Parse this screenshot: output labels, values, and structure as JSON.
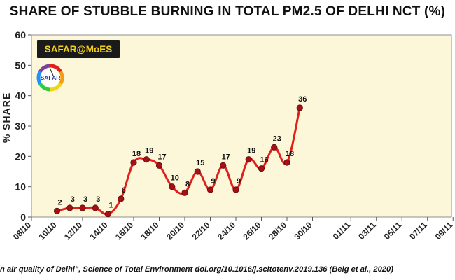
{
  "chart_data": {
    "type": "line",
    "title": "SHARE OF STUBBLE BURNING IN TOTAL PM2.5 OF DELHI NCT (%)",
    "xlabel": "",
    "ylabel": "% SHARE",
    "ylim": [
      0,
      60
    ],
    "yticks": [
      0,
      10,
      20,
      30,
      40,
      50,
      60
    ],
    "xticks": [
      "08/10",
      "10/10",
      "12/10",
      "14/10",
      "16/10",
      "18/10",
      "20/10",
      "22/10",
      "24/10",
      "26/10",
      "28/10",
      "30/10",
      "01/11",
      "03/11",
      "05/11",
      "07/11",
      "09/11"
    ],
    "grid": false,
    "series": [
      {
        "color": "#e0201b",
        "marker_color": "#a50f15",
        "points": [
          {
            "x": "10/10",
            "y": 2
          },
          {
            "x": "11/10",
            "y": 3
          },
          {
            "x": "12/10",
            "y": 3
          },
          {
            "x": "13/10",
            "y": 3
          },
          {
            "x": "14/10",
            "y": 1
          },
          {
            "x": "15/10",
            "y": 6
          },
          {
            "x": "16/10",
            "y": 18
          },
          {
            "x": "17/10",
            "y": 19
          },
          {
            "x": "18/10",
            "y": 17
          },
          {
            "x": "19/10",
            "y": 10
          },
          {
            "x": "20/10",
            "y": 8
          },
          {
            "x": "21/10",
            "y": 15
          },
          {
            "x": "22/10",
            "y": 9
          },
          {
            "x": "23/10",
            "y": 17
          },
          {
            "x": "24/10",
            "y": 9
          },
          {
            "x": "25/10",
            "y": 19
          },
          {
            "x": "26/10",
            "y": 16
          },
          {
            "x": "27/10",
            "y": 23
          },
          {
            "x": "28/10",
            "y": 18
          },
          {
            "x": "29/10",
            "y": 36
          }
        ]
      }
    ],
    "data_labels": [
      "2",
      "3",
      "3",
      "3",
      "1",
      "6",
      "18",
      "19",
      "17",
      "10",
      "8",
      "15",
      "9",
      "17",
      "9",
      "19",
      "16",
      "23",
      "18",
      "36"
    ],
    "plot_background": "#fcf7d9"
  },
  "badge": {
    "text": "SAFAR@MoES",
    "background": "#1a1a1a",
    "text_color": "#f2d21c"
  },
  "logo": {
    "name": "safar-logo-icon",
    "text": "SAFAR"
  },
  "footer": {
    "citation": "n air quality of Delhi\", Science of Total Environment doi.org/10.1016/j.scitotenv.2019.136 (Beig et al., 2020)"
  }
}
